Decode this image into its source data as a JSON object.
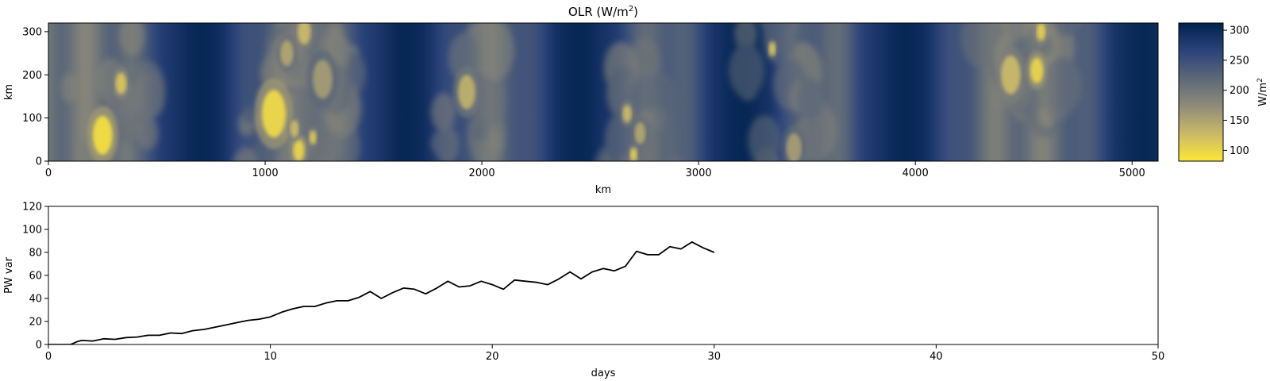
{
  "chart_data": [
    {
      "type": "heatmap",
      "title": "OLR (W/m",
      "title_sup": "2",
      "title_suffix": ")",
      "xlabel": "km",
      "ylabel": "km",
      "xlim": [
        0,
        5120
      ],
      "ylim": [
        0,
        320
      ],
      "xticks": [
        0,
        1000,
        2000,
        3000,
        4000,
        5000
      ],
      "yticks": [
        0,
        100,
        200,
        300
      ],
      "colormap": "cividis_r",
      "colorbar": {
        "label": "W/m",
        "label_sup": "2",
        "range": [
          82,
          312
        ],
        "ticks": [
          100,
          150,
          200,
          250,
          300
        ],
        "colors": [
          "#fde737",
          "#c9b869",
          "#8f8b7a",
          "#5c6878",
          "#2b437a",
          "#00224e"
        ]
      },
      "clear_band_centers_km": [
        700,
        1650,
        2450,
        3200,
        3950,
        5050
      ],
      "convective_clusters": [
        {
          "x_km": 250,
          "y_km": 60,
          "r_km": 45,
          "olr": 95
        },
        {
          "x_km": 335,
          "y_km": 180,
          "r_km": 25,
          "olr": 120
        },
        {
          "x_km": 1040,
          "y_km": 110,
          "r_km": 55,
          "olr": 100
        },
        {
          "x_km": 1155,
          "y_km": 25,
          "r_km": 25,
          "olr": 105
        },
        {
          "x_km": 1135,
          "y_km": 75,
          "r_km": 20,
          "olr": 130
        },
        {
          "x_km": 1220,
          "y_km": 55,
          "r_km": 15,
          "olr": 115
        },
        {
          "x_km": 1100,
          "y_km": 250,
          "r_km": 30,
          "olr": 150
        },
        {
          "x_km": 1180,
          "y_km": 300,
          "r_km": 30,
          "olr": 130
        },
        {
          "x_km": 1265,
          "y_km": 190,
          "r_km": 45,
          "olr": 160
        },
        {
          "x_km": 1930,
          "y_km": 160,
          "r_km": 40,
          "olr": 140
        },
        {
          "x_km": 2670,
          "y_km": 110,
          "r_km": 20,
          "olr": 130
        },
        {
          "x_km": 2730,
          "y_km": 65,
          "r_km": 25,
          "olr": 150
        },
        {
          "x_km": 2700,
          "y_km": 15,
          "r_km": 15,
          "olr": 110
        },
        {
          "x_km": 3340,
          "y_km": 260,
          "r_km": 15,
          "olr": 120
        },
        {
          "x_km": 3440,
          "y_km": 30,
          "r_km": 35,
          "olr": 160
        },
        {
          "x_km": 4440,
          "y_km": 200,
          "r_km": 45,
          "olr": 130
        },
        {
          "x_km": 4560,
          "y_km": 210,
          "r_km": 30,
          "olr": 105
        },
        {
          "x_km": 4580,
          "y_km": 300,
          "r_km": 20,
          "olr": 110
        }
      ]
    },
    {
      "type": "line",
      "title": "",
      "xlabel": "days",
      "ylabel": "PW var",
      "xlim": [
        0,
        50
      ],
      "ylim": [
        0,
        120
      ],
      "xticks": [
        0,
        10,
        20,
        30,
        40,
        50
      ],
      "yticks": [
        0,
        20,
        40,
        60,
        80,
        100,
        120
      ],
      "series": [
        {
          "color": "#000000",
          "x": [
            0,
            1,
            1.3,
            1.5,
            2,
            2.5,
            3,
            3.5,
            4,
            4.5,
            5,
            5.5,
            6,
            6.5,
            7,
            7.5,
            8,
            8.5,
            9,
            9.5,
            10,
            10.5,
            11,
            11.5,
            12,
            12.5,
            13,
            13.5,
            14,
            14.5,
            15,
            15.5,
            16,
            16.5,
            17,
            17.5,
            18,
            18.5,
            19,
            19.5,
            20,
            20.5,
            21,
            21.5,
            22,
            22.5,
            23,
            23.5,
            24,
            24.5,
            25,
            25.5,
            26,
            26.5,
            27,
            27.5,
            28,
            28.5,
            29,
            29.5,
            30
          ],
          "y": [
            0,
            0,
            2.5,
            3.5,
            3,
            5,
            4.5,
            6,
            6.5,
            8,
            8,
            10,
            9.5,
            12,
            13,
            15,
            17,
            19,
            21,
            22,
            24,
            28,
            31,
            33,
            33,
            36,
            38,
            38,
            41,
            46,
            40,
            45,
            49,
            48,
            44,
            49,
            55,
            50,
            51,
            55,
            52,
            48,
            56,
            55,
            54,
            52,
            57,
            63,
            57,
            63,
            66,
            64,
            68,
            81,
            78,
            78,
            85,
            83,
            89,
            84,
            80
          ]
        }
      ]
    }
  ]
}
